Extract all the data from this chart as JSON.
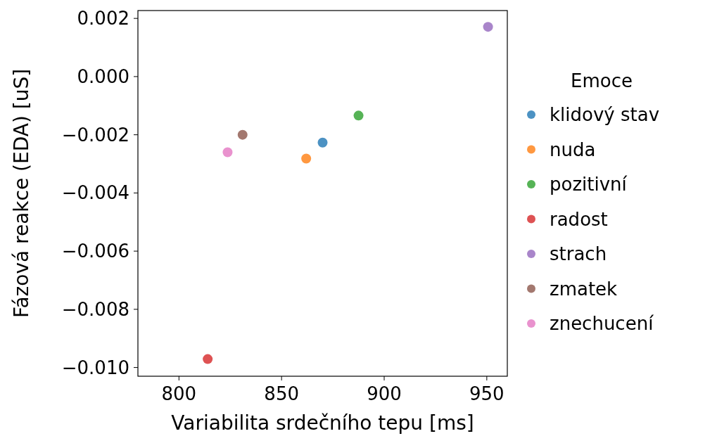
{
  "chart_data": {
    "type": "scatter",
    "xlabel": "Variabilita srdečního tepu [ms]",
    "ylabel": "Fázová reakce (EDA) [uS]",
    "legend_title": "Emoce",
    "xlim": [
      780,
      960
    ],
    "xticks": [
      800,
      850,
      900,
      950
    ],
    "ylim": [
      -0.0103,
      0.00227
    ],
    "yticks": [
      {
        "value": 0.002,
        "label": "0.002"
      },
      {
        "value": 0,
        "label": "0.000"
      },
      {
        "value": -0.002,
        "label": "−0.002"
      },
      {
        "value": -0.004,
        "label": "−0.004"
      },
      {
        "value": -0.006,
        "label": "−0.006"
      },
      {
        "value": -0.008,
        "label": "−0.008"
      },
      {
        "value": -0.01,
        "label": "−0.010"
      }
    ],
    "legend": "right",
    "marker": "circle",
    "grid": false,
    "series": [
      {
        "name": "klidový stav",
        "color": "#4c92c3",
        "x": [
          870
        ],
        "values": [
          -0.00227
        ]
      },
      {
        "name": "nuda",
        "color": "#ff9840",
        "x": [
          862
        ],
        "values": [
          -0.00282
        ]
      },
      {
        "name": "pozitivní",
        "color": "#56b356",
        "x": [
          887.5
        ],
        "values": [
          -0.00134
        ]
      },
      {
        "name": "radost",
        "color": "#de5253",
        "x": [
          814
        ],
        "values": [
          -0.00971
        ]
      },
      {
        "name": "strach",
        "color": "#a985ca",
        "x": [
          950.6
        ],
        "values": [
          0.00171
        ]
      },
      {
        "name": "zmatek",
        "color": "#a3786f",
        "x": [
          831
        ],
        "values": [
          -0.002
        ]
      },
      {
        "name": "znechucení",
        "color": "#e992ce",
        "x": [
          823.7
        ],
        "values": [
          -0.0026
        ]
      }
    ]
  }
}
